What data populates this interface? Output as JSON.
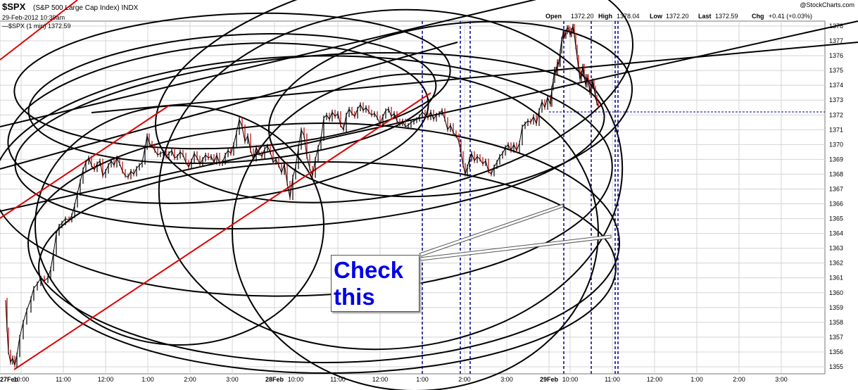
{
  "header": {
    "symbol": "$SPX",
    "description": "(S&P 500 Large Cap Index) INDX",
    "date_line": "29-Feb-2012 10:39am",
    "series_label": "—$SPX (1 min) 1372.59",
    "watermark": "@StockCharts.com",
    "stats": {
      "open_label": "Open",
      "open": "1372.20",
      "high_label": "High",
      "high": "1378.04",
      "low_label": "Low",
      "low": "1372.20",
      "last_label": "Last",
      "last": "1372.59",
      "chg_label": "Chg",
      "chg": "+0.41 (+0.03%)"
    }
  },
  "annotation": {
    "line1": "Check",
    "line2": "this"
  },
  "colors": {
    "price": "#000000",
    "price_down": "#c00000",
    "ellipse": "#000000",
    "trend_black": "#000000",
    "trend_red": "#e00000",
    "vertical_dashed": "#00008b",
    "annotation_text": "#0000e6"
  },
  "chart_data": {
    "type": "line",
    "title": "$SPX (S&P 500 Large Cap Index) INDX",
    "interval": "1 min",
    "y_axis": {
      "side": "right",
      "min": 1355,
      "max": 1378,
      "ticks": [
        1355,
        1356,
        1357,
        1358,
        1359,
        1360,
        1361,
        1362,
        1363,
        1364,
        1365,
        1366,
        1367,
        1368,
        1369,
        1370,
        1371,
        1372,
        1373,
        1374,
        1375,
        1376,
        1377,
        1378
      ]
    },
    "x_ticks": [
      {
        "label": "27Feb",
        "bold": true,
        "pos": 0
      },
      {
        "label": "10:00",
        "pos": 30
      },
      {
        "label": "11:00",
        "pos": 90
      },
      {
        "label": "12:00",
        "pos": 150
      },
      {
        "label": "1:00",
        "pos": 210
      },
      {
        "label": "2:00",
        "pos": 270
      },
      {
        "label": "3:00",
        "pos": 330
      },
      {
        "label": "28Feb",
        "bold": true,
        "pos": 390
      },
      {
        "label": "10:00",
        "pos": 420
      },
      {
        "label": "11:00",
        "pos": 480
      },
      {
        "label": "12:00",
        "pos": 540
      },
      {
        "label": "1:00",
        "pos": 600
      },
      {
        "label": "2:00",
        "pos": 660
      },
      {
        "label": "3:00",
        "pos": 720
      },
      {
        "label": "29Feb",
        "bold": true,
        "pos": 780
      },
      {
        "label": "10:00",
        "pos": 810
      },
      {
        "label": "11:00",
        "pos": 870
      },
      {
        "label": "12:00",
        "pos": 930
      },
      {
        "label": "1:00",
        "pos": 990
      },
      {
        "label": "2:00",
        "pos": 1050
      },
      {
        "label": "3:00",
        "pos": 1110
      }
    ],
    "x_range": [
      0,
      1172
    ],
    "series": [
      {
        "name": "$SPX (1 min)",
        "points": [
          [
            8,
            1359.5
          ],
          [
            10,
            1357.5
          ],
          [
            12,
            1356.0
          ],
          [
            15,
            1355.3
          ],
          [
            18,
            1355.6
          ],
          [
            21,
            1355.1
          ],
          [
            24,
            1355.8
          ],
          [
            28,
            1357.0
          ],
          [
            33,
            1358.0
          ],
          [
            38,
            1358.8
          ],
          [
            44,
            1359.6
          ],
          [
            48,
            1360.3
          ],
          [
            53,
            1360.6
          ],
          [
            58,
            1361.0
          ],
          [
            63,
            1360.8
          ],
          [
            68,
            1361.0
          ],
          [
            72,
            1361.6
          ],
          [
            76,
            1362.7
          ],
          [
            80,
            1364.0
          ],
          [
            84,
            1364.5
          ],
          [
            88,
            1364.7
          ],
          [
            93,
            1365.0
          ],
          [
            98,
            1364.9
          ],
          [
            102,
            1365.2
          ],
          [
            106,
            1365.9
          ],
          [
            110,
            1366.7
          ],
          [
            114,
            1367.5
          ],
          [
            118,
            1368.3
          ],
          [
            122,
            1368.8
          ],
          [
            126,
            1369.1
          ],
          [
            130,
            1368.6
          ],
          [
            134,
            1368.3
          ],
          [
            138,
            1368.7
          ],
          [
            142,
            1368.9
          ],
          [
            146,
            1367.9
          ],
          [
            150,
            1368.2
          ],
          [
            154,
            1368.6
          ],
          [
            158,
            1368.9
          ],
          [
            162,
            1368.6
          ],
          [
            166,
            1369.1
          ],
          [
            170,
            1368.7
          ],
          [
            174,
            1368.2
          ],
          [
            178,
            1367.9
          ],
          [
            182,
            1367.8
          ],
          [
            186,
            1368.2
          ],
          [
            190,
            1368.0
          ],
          [
            194,
            1368.4
          ],
          [
            198,
            1368.6
          ],
          [
            202,
            1368.8
          ],
          [
            206,
            1369.8
          ],
          [
            209,
            1370.6
          ],
          [
            212,
            1370.1
          ],
          [
            216,
            1369.9
          ],
          [
            220,
            1369.6
          ],
          [
            224,
            1369.3
          ],
          [
            228,
            1369.4
          ],
          [
            232,
            1369.5
          ],
          [
            236,
            1369.2
          ],
          [
            240,
            1369.4
          ],
          [
            244,
            1369.6
          ],
          [
            248,
            1369.1
          ],
          [
            252,
            1369.2
          ],
          [
            256,
            1369.5
          ],
          [
            260,
            1369.3
          ],
          [
            264,
            1368.8
          ],
          [
            268,
            1368.5
          ],
          [
            272,
            1368.9
          ],
          [
            276,
            1369.4
          ],
          [
            280,
            1369.1
          ],
          [
            284,
            1368.7
          ],
          [
            288,
            1369.0
          ],
          [
            292,
            1369.3
          ],
          [
            296,
            1369.1
          ],
          [
            300,
            1369.2
          ],
          [
            304,
            1368.8
          ],
          [
            308,
            1369.3
          ],
          [
            312,
            1368.7
          ],
          [
            316,
            1368.8
          ],
          [
            320,
            1369.3
          ],
          [
            324,
            1369.6
          ],
          [
            328,
            1369.4
          ],
          [
            332,
            1370.0
          ],
          [
            336,
            1370.8
          ],
          [
            340,
            1371.7
          ],
          [
            344,
            1371.2
          ],
          [
            348,
            1370.2
          ],
          [
            352,
            1370.6
          ],
          [
            356,
            1369.6
          ],
          [
            360,
            1369.0
          ],
          [
            364,
            1369.8
          ],
          [
            368,
            1369.4
          ],
          [
            372,
            1369.2
          ],
          [
            376,
            1369.7
          ],
          [
            380,
            1369.9
          ],
          [
            384,
            1369.5
          ],
          [
            388,
            1368.8
          ],
          [
            392,
            1369.0
          ],
          [
            396,
            1368.6
          ],
          [
            400,
            1368.1
          ],
          [
            404,
            1368.7
          ],
          [
            408,
            1367.4
          ],
          [
            412,
            1366.4
          ],
          [
            416,
            1367.8
          ],
          [
            420,
            1368.5
          ],
          [
            424,
            1369.8
          ],
          [
            428,
            1371.0
          ],
          [
            432,
            1370.6
          ],
          [
            436,
            1369.2
          ],
          [
            440,
            1368.4
          ],
          [
            444,
            1367.9
          ],
          [
            448,
            1369.0
          ],
          [
            452,
            1369.8
          ],
          [
            456,
            1370.4
          ],
          [
            460,
            1371.8
          ],
          [
            464,
            1372.0
          ],
          [
            468,
            1371.7
          ],
          [
            472,
            1372.2
          ],
          [
            476,
            1371.9
          ],
          [
            480,
            1372.1
          ],
          [
            484,
            1371.3
          ],
          [
            488,
            1371.0
          ],
          [
            492,
            1372.0
          ],
          [
            496,
            1372.4
          ],
          [
            500,
            1372.1
          ],
          [
            504,
            1371.9
          ],
          [
            508,
            1372.4
          ],
          [
            512,
            1372.7
          ],
          [
            516,
            1372.3
          ],
          [
            520,
            1372.5
          ],
          [
            524,
            1372.2
          ],
          [
            528,
            1372.0
          ],
          [
            532,
            1372.1
          ],
          [
            536,
            1371.8
          ],
          [
            540,
            1371.4
          ],
          [
            544,
            1371.9
          ],
          [
            548,
            1372.3
          ],
          [
            552,
            1372.4
          ],
          [
            556,
            1371.9
          ],
          [
            560,
            1372.1
          ],
          [
            564,
            1371.6
          ],
          [
            568,
            1371.4
          ],
          [
            572,
            1371.6
          ],
          [
            576,
            1371.2
          ],
          [
            580,
            1371.3
          ],
          [
            584,
            1371.5
          ],
          [
            588,
            1371.6
          ],
          [
            592,
            1371.7
          ],
          [
            596,
            1371.9
          ],
          [
            600,
            1372.2
          ],
          [
            604,
            1372.0
          ],
          [
            608,
            1371.8
          ],
          [
            612,
            1372.2
          ],
          [
            616,
            1371.7
          ],
          [
            620,
            1372.0
          ],
          [
            624,
            1372.1
          ],
          [
            628,
            1372.3
          ],
          [
            632,
            1371.7
          ],
          [
            636,
            1371.0
          ],
          [
            640,
            1371.3
          ],
          [
            644,
            1370.8
          ],
          [
            648,
            1370.6
          ],
          [
            652,
            1370.2
          ],
          [
            655,
            1369.4
          ],
          [
            658,
            1368.6
          ],
          [
            661,
            1368.0
          ],
          [
            664,
            1368.5
          ],
          [
            667,
            1369.0
          ],
          [
            670,
            1369.4
          ],
          [
            674,
            1368.9
          ],
          [
            678,
            1369.2
          ],
          [
            682,
            1369.0
          ],
          [
            686,
            1368.7
          ],
          [
            690,
            1368.9
          ],
          [
            694,
            1368.2
          ],
          [
            698,
            1368.0
          ],
          [
            702,
            1368.5
          ],
          [
            706,
            1368.8
          ],
          [
            710,
            1369.2
          ],
          [
            714,
            1369.4
          ],
          [
            718,
            1369.8
          ],
          [
            722,
            1370.0
          ],
          [
            726,
            1369.6
          ],
          [
            730,
            1370.0
          ],
          [
            734,
            1369.6
          ],
          [
            738,
            1370.1
          ],
          [
            742,
            1371.2
          ],
          [
            746,
            1371.4
          ],
          [
            750,
            1371.6
          ],
          [
            754,
            1371.5
          ],
          [
            758,
            1371.9
          ],
          [
            762,
            1371.4
          ],
          [
            766,
            1372.3
          ],
          [
            770,
            1372.9
          ],
          [
            774,
            1372.5
          ],
          [
            778,
            1373.2
          ],
          [
            782,
            1372.7
          ],
          [
            784,
            1373.8
          ],
          [
            786,
            1374.3
          ],
          [
            788,
            1375.1
          ],
          [
            790,
            1374.8
          ],
          [
            792,
            1375.6
          ],
          [
            794,
            1375.4
          ],
          [
            796,
            1376.3
          ],
          [
            798,
            1377.1
          ],
          [
            800,
            1377.5
          ],
          [
            802,
            1377.3
          ],
          [
            804,
            1377.6
          ],
          [
            806,
            1377.9
          ],
          [
            808,
            1377.8
          ],
          [
            810,
            1377.4
          ],
          [
            812,
            1377.7
          ],
          [
            814,
            1378.0
          ],
          [
            816,
            1377.4
          ],
          [
            818,
            1376.6
          ],
          [
            820,
            1375.9
          ],
          [
            822,
            1375.1
          ],
          [
            824,
            1374.4
          ],
          [
            826,
            1374.8
          ],
          [
            828,
            1375.3
          ],
          [
            830,
            1374.6
          ],
          [
            832,
            1374.0
          ],
          [
            834,
            1374.6
          ],
          [
            836,
            1374.2
          ],
          [
            838,
            1373.5
          ],
          [
            840,
            1373.9
          ],
          [
            842,
            1374.3
          ],
          [
            844,
            1373.8
          ],
          [
            846,
            1373.2
          ],
          [
            848,
            1372.8
          ],
          [
            850,
            1372.6
          ]
        ]
      }
    ],
    "horizontal_line": {
      "value": 1372.2,
      "from": 780
    },
    "vertical_markers": [
      600,
      654,
      668,
      801,
      840,
      874,
      878
    ],
    "grid": true
  }
}
